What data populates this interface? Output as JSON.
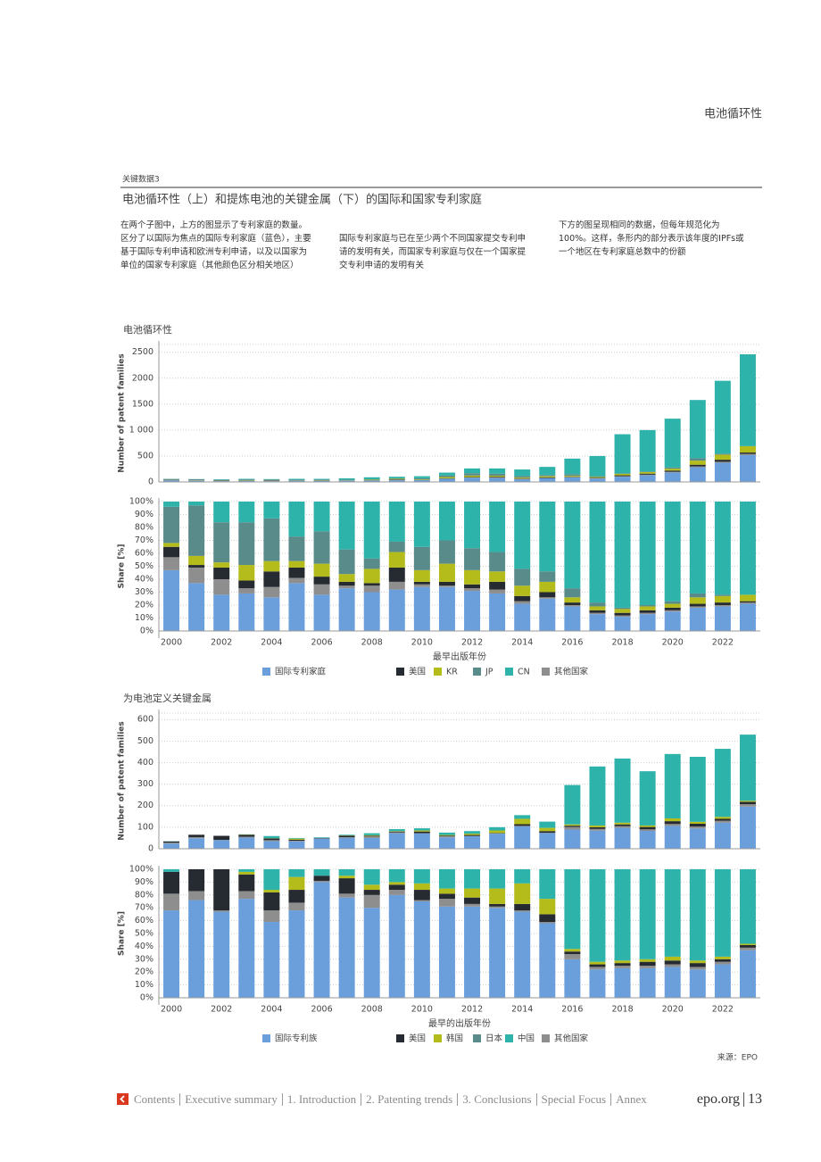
{
  "header": {
    "section": "电池循环性"
  },
  "figure": {
    "label": "关键数据3",
    "title": "电池循环性（上）和提炼电池的关键金属（下）的国际和国家专利家庭"
  },
  "paragraphs": [
    "在两个子图中，上方的图显示了专利家庭的数量。区分了以国际为焦点的国际专利家庭（蓝色），主要基于国际专利申请和欧洲专利申请，以及以国家为单位的国家专利家庭（其他颜色区分相关地区）",
    "国际专利家庭与已在至少两个不同国家提交专利申请的发明有关，而国家专利家庭与仅在一个国家提交专利申请的发明有关",
    "下方的图呈现相同的数据，但每年规范化为100%。这样，条形内的部分表示该年度的IPFs或一个地区在专利家庭总数中的份额"
  ],
  "chart_data": [
    {
      "type": "stacked_bar",
      "title": "电池循环性",
      "y_label": "Number of patent families",
      "ylim": [
        0,
        2650
      ],
      "yticks": [
        0,
        500,
        {
          "value": 1000,
          "label": "1 000"
        },
        1500,
        2000,
        2500
      ],
      "grid": true,
      "series": [
        {
          "color": "#6a9fdc",
          "values": [
            28,
            20,
            14,
            17,
            14,
            22,
            17,
            23,
            27,
            32,
            37,
            61,
            81,
            75,
            50,
            73,
            86,
            65,
            101,
            130,
            183,
            284,
            371,
            517
          ]
        },
        {
          "color": "#262a31",
          "values": [
            5,
            1,
            5,
            4,
            7,
            5,
            4,
            2,
            2,
            11,
            2,
            5,
            8,
            16,
            10,
            12,
            9,
            10,
            18,
            20,
            24,
            32,
            39,
            25
          ]
        },
        {
          "color": "#b4bc1c",
          "values": [
            2,
            4,
            2,
            7,
            4,
            3,
            6,
            4,
            10,
            12,
            10,
            25,
            29,
            21,
            19,
            23,
            18,
            15,
            28,
            30,
            37,
            79,
            98,
            123
          ]
        },
        {
          "color": "#5a8b8b",
          "values": [
            17,
            21,
            16,
            20,
            18,
            11,
            15,
            13,
            7,
            8,
            20,
            32,
            44,
            39,
            31,
            23,
            32,
            15,
            9,
            10,
            24,
            47,
            20,
            0
          ]
        },
        {
          "color": "#2eb3aa",
          "values": [
            2,
            2,
            8,
            10,
            7,
            16,
            14,
            26,
            40,
            31,
            39,
            54,
            93,
            101,
            125,
            157,
            301,
            390,
            755,
            800,
            940,
            1122,
            1404,
            1771
          ]
        },
        {
          "color": "#8e8e8e",
          "values": [
            6,
            7,
            5,
            2,
            5,
            3,
            4,
            2,
            4,
            6,
            2,
            3,
            5,
            8,
            5,
            2,
            4,
            5,
            9,
            10,
            12,
            16,
            18,
            25
          ]
        }
      ]
    },
    {
      "type": "stacked_bar",
      "y_label": "Share [%]",
      "x_label": "最早出版年份",
      "categories": [
        "2000",
        null,
        "2002",
        null,
        "2004",
        null,
        "2006",
        null,
        "2008",
        null,
        "2010",
        null,
        "2012",
        null,
        "2014",
        null,
        "2016",
        null,
        "2018",
        null,
        "2020",
        null,
        "2022",
        null
      ],
      "ylim": [
        0,
        100
      ],
      "yticks": [
        {
          "value": 0,
          "label": "0%"
        },
        {
          "value": 10,
          "label": "10%"
        },
        {
          "value": 20,
          "label": "20%"
        },
        {
          "value": 30,
          "label": "30%"
        },
        {
          "value": 40,
          "label": "40%"
        },
        {
          "value": 50,
          "label": "50%"
        },
        {
          "value": 60,
          "label": "60%"
        },
        {
          "value": 70,
          "label": "70%"
        },
        {
          "value": 80,
          "label": "80%"
        },
        {
          "value": 90,
          "label": "90%"
        },
        {
          "value": 100,
          "label": "100%"
        }
      ],
      "grid": true,
      "legend": "bottom",
      "series": [
        {
          "name": "国际专利家庭",
          "color": "#6a9fdc",
          "values": [
            47,
            37,
            28,
            29,
            26,
            37,
            28,
            33,
            30,
            32,
            34,
            34,
            31,
            29,
            21,
            25,
            19,
            13,
            11,
            13,
            15,
            18,
            19,
            21
          ]
        },
        {
          "name": "美国",
          "color": "#262a31",
          "values": [
            8,
            2,
            9,
            6,
            12,
            8,
            6,
            3,
            2,
            11,
            2,
            3,
            3,
            6,
            4,
            4,
            2,
            2,
            2,
            2,
            2,
            2,
            2,
            1
          ]
        },
        {
          "name": "KR",
          "color": "#b4bc1c",
          "values": [
            3,
            7,
            4,
            12,
            8,
            5,
            10,
            6,
            11,
            12,
            9,
            14,
            11,
            8,
            8,
            8,
            4,
            3,
            3,
            3,
            3,
            5,
            5,
            5
          ]
        },
        {
          "name": "JP",
          "color": "#5a8b8b",
          "values": [
            28,
            39,
            31,
            33,
            33,
            19,
            25,
            19,
            8,
            8,
            18,
            18,
            17,
            15,
            13,
            8,
            7,
            3,
            1,
            1,
            2,
            3,
            1,
            0
          ]
        },
        {
          "name": "CN",
          "color": "#2eb3aa",
          "values": [
            4,
            3,
            16,
            16,
            13,
            27,
            23,
            37,
            44,
            31,
            35,
            30,
            36,
            39,
            52,
            54,
            67,
            78,
            82,
            80,
            77,
            71,
            72,
            72
          ]
        },
        {
          "name": "其他国家",
          "color": "#8e8e8e",
          "values": [
            10,
            12,
            12,
            4,
            8,
            4,
            8,
            2,
            5,
            6,
            2,
            1,
            2,
            3,
            2,
            1,
            1,
            1,
            1,
            1,
            1,
            1,
            1,
            1
          ]
        }
      ]
    },
    {
      "type": "stacked_bar",
      "title": "为电池定义关键金属",
      "y_label": "Number of patent families",
      "ylim": [
        0,
        630
      ],
      "yticks": [
        0,
        100,
        200,
        300,
        400,
        500,
        600
      ],
      "grid": true,
      "series": [
        {
          "color": "#6a9fdc",
          "values": [
            24,
            49,
            40,
            52,
            35,
            34,
            47,
            51,
            50,
            72,
            71,
            53,
            58,
            70,
            104,
            73,
            89,
            84,
            97,
            83,
            106,
            94,
            121,
            196
          ]
        },
        {
          "color": "#262a31",
          "values": [
            6,
            11,
            19,
            9,
            8,
            5,
            2,
            8,
            3,
            4,
            8,
            3,
            4,
            2,
            8,
            8,
            6,
            8,
            8,
            11,
            13,
            13,
            9,
            11
          ]
        },
        {
          "color": "#b4bc1c",
          "values": [
            0,
            0,
            0,
            1,
            1,
            5,
            0,
            1,
            3,
            2,
            5,
            3,
            6,
            12,
            25,
            15,
            6,
            8,
            8,
            7,
            13,
            9,
            9,
            5
          ]
        },
        {
          "color": "#5a8b8b",
          "values": [
            0,
            0,
            0,
            0,
            0,
            0,
            0,
            0,
            0,
            0,
            0,
            0,
            0,
            0,
            0,
            0,
            0,
            0,
            0,
            0,
            0,
            0,
            0,
            0
          ]
        },
        {
          "color": "#2eb3aa",
          "values": [
            1,
            0,
            0,
            1,
            10,
            3,
            3,
            3,
            9,
            9,
            10,
            11,
            12,
            15,
            17,
            29,
            183,
            274,
            298,
            252,
            299,
            302,
            316,
            307
          ]
        },
        {
          "color": "#8e8e8e",
          "values": [
            4,
            5,
            1,
            4,
            5,
            3,
            1,
            2,
            7,
            4,
            1,
            5,
            2,
            1,
            2,
            1,
            12,
            8,
            8,
            7,
            9,
            9,
            9,
            11
          ]
        }
      ]
    },
    {
      "type": "stacked_bar",
      "y_label": "Share [%]",
      "x_label": "最早的出版年份",
      "categories": [
        "2000",
        null,
        "2002",
        null,
        "2004",
        null,
        "2006",
        null,
        "2008",
        null,
        "2010",
        null,
        "2012",
        null,
        "2014",
        null,
        "2016",
        null,
        "2018",
        null,
        "2020",
        null,
        "2022",
        null
      ],
      "ylim": [
        0,
        100
      ],
      "yticks": [
        {
          "value": 0,
          "label": "0%"
        },
        {
          "value": 10,
          "label": "10%"
        },
        {
          "value": 20,
          "label": "20%"
        },
        {
          "value": 30,
          "label": "30%"
        },
        {
          "value": 40,
          "label": "40%"
        },
        {
          "value": 50,
          "label": "50%"
        },
        {
          "value": 60,
          "label": "60%"
        },
        {
          "value": 70,
          "label": "70%"
        },
        {
          "value": 80,
          "label": "80%"
        },
        {
          "value": 90,
          "label": "90%"
        },
        {
          "value": 100,
          "label": "100%"
        }
      ],
      "grid": true,
      "legend": "bottom",
      "series": [
        {
          "name": "国际专利族",
          "color": "#6a9fdc",
          "values": [
            68,
            76,
            67,
            77,
            59,
            68,
            90,
            78,
            70,
            80,
            75,
            71,
            71,
            70,
            67,
            58,
            30,
            22,
            23,
            23,
            24,
            22,
            26,
            37
          ]
        },
        {
          "name": "美国",
          "color": "#262a31",
          "values": [
            17,
            17,
            32,
            13,
            14,
            10,
            4,
            12,
            4,
            4,
            8,
            4,
            5,
            2,
            5,
            6,
            2,
            2,
            2,
            3,
            3,
            3,
            2,
            2
          ]
        },
        {
          "name": "韩国",
          "color": "#b4bc1c",
          "values": [
            0,
            0,
            0,
            2,
            2,
            10,
            0,
            2,
            4,
            2,
            5,
            4,
            7,
            12,
            16,
            12,
            2,
            2,
            2,
            2,
            3,
            2,
            2,
            1
          ]
        },
        {
          "name": "日本",
          "color": "#5a8b8b",
          "values": [
            0,
            0,
            0,
            0,
            0,
            0,
            0,
            0,
            0,
            0,
            0,
            0,
            0,
            0,
            0,
            0,
            0,
            0,
            0,
            0,
            0,
            0,
            0,
            0
          ]
        },
        {
          "name": "中国",
          "color": "#2eb3aa",
          "values": [
            2,
            0,
            0,
            2,
            16,
            6,
            5,
            5,
            12,
            10,
            11,
            15,
            15,
            15,
            11,
            23,
            62,
            72,
            71,
            70,
            68,
            71,
            68,
            58
          ]
        },
        {
          "name": "其他国家",
          "color": "#8e8e8e",
          "values": [
            13,
            7,
            1,
            6,
            9,
            6,
            1,
            3,
            10,
            4,
            1,
            6,
            2,
            1,
            1,
            1,
            4,
            2,
            2,
            2,
            2,
            2,
            2,
            2
          ]
        }
      ]
    }
  ],
  "source": "来源：EPO",
  "footer": {
    "nav": [
      "Contents",
      "Executive summary",
      "1. Introduction",
      "2. Patenting trends",
      "3. Conclusions",
      "Special Focus",
      "Annex"
    ],
    "site": "epo.org",
    "page": "13"
  }
}
